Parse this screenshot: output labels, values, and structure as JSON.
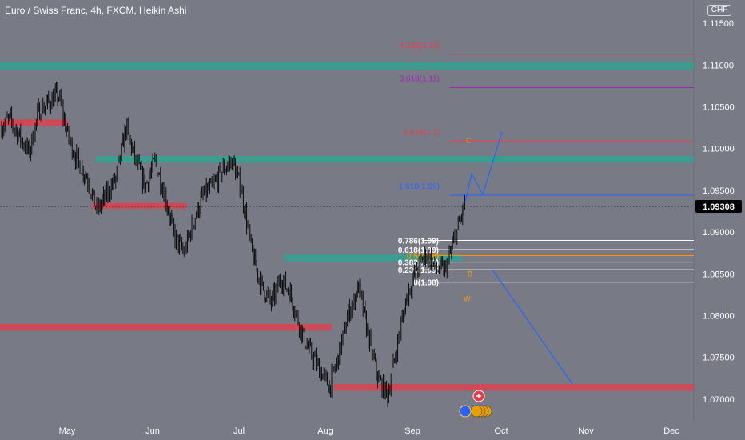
{
  "header": {
    "title": "Euro / Swiss Franc, 4h, FXCM, Heikin Ashi",
    "currency": "CHF"
  },
  "colors": {
    "background": "#787b86",
    "candles": "#000000",
    "support_zone": "#f23645",
    "resistance_zone": "#22ab94",
    "projection": "#2962ff",
    "fib_level": "#ffffff",
    "fib_mid": "#ff9800",
    "fib_ext_1": "#2962ff",
    "fib_ext_2": "#f23645",
    "fib_ext_3": "#9c27b0",
    "fib_ext_4": "#f23645"
  },
  "chart_data": {
    "type": "candlestick",
    "title": "Euro / Swiss Franc, 4h, FXCM, Heikin Ashi",
    "x_ticks": [
      "May",
      "Jun",
      "Jul",
      "Aug",
      "Sep",
      "Oct",
      "Nov",
      "Dec"
    ],
    "y_ticks": [
      "1.11500",
      "1.11000",
      "1.10500",
      "1.10000",
      "1.09500",
      "1.09000",
      "1.08500",
      "1.08000",
      "1.07500",
      "1.07000"
    ],
    "ylim": [
      1.0675,
      1.1175
    ],
    "last_price": "1.09308",
    "last_price_value": 1.09308,
    "price_path": [
      1.1025,
      1.1035,
      1.1015,
      1.0995,
      1.1045,
      1.1055,
      1.1065,
      1.1015,
      1.0985,
      1.0965,
      1.0925,
      1.0945,
      1.0965,
      1.1025,
      1.0985,
      1.0955,
      1.0985,
      1.0945,
      1.0895,
      1.0875,
      1.0915,
      1.0945,
      1.0955,
      1.0975,
      1.0985,
      1.0945,
      1.0875,
      1.0835,
      1.0815,
      1.0845,
      1.0825,
      1.0785,
      1.0755,
      1.0735,
      1.0715,
      1.0755,
      1.0805,
      1.0835,
      1.0775,
      1.0725,
      1.0705,
      1.0765,
      1.0825,
      1.0855,
      1.0875,
      1.0855,
      1.0855,
      1.0895,
      1.0935
    ],
    "zones": [
      {
        "kind": "resistance",
        "y_top": 1.1103,
        "y_bottom": 1.1095,
        "x_start": "May"
      },
      {
        "kind": "support",
        "y_top": 1.1035,
        "y_bottom": 1.1027,
        "x_start": "May"
      },
      {
        "kind": "resistance",
        "y_top": 1.0991,
        "y_bottom": 1.0983,
        "x_start": "May"
      },
      {
        "kind": "support",
        "y_top": 1.0935,
        "y_bottom": 1.0928,
        "x_start": "May"
      },
      {
        "kind": "resistance",
        "y_top": 1.0873,
        "y_bottom": 1.0865,
        "x_start": "Jul"
      },
      {
        "kind": "support",
        "y_top": 1.079,
        "y_bottom": 1.0782,
        "x_start": "May"
      },
      {
        "kind": "support",
        "y_top": 1.0718,
        "y_bottom": 1.071,
        "x_start": "Aug"
      }
    ],
    "fib_levels": [
      {
        "label": "4.236(1.11)",
        "value": 1.1113,
        "color_key": "fib_ext_4"
      },
      {
        "label": "3.618(1.11)",
        "value": 1.1073,
        "color_key": "fib_ext_3"
      },
      {
        "label": "2.618(1.1)",
        "value": 1.1009,
        "color_key": "fib_ext_2"
      },
      {
        "label": "1.618(1.09)",
        "value": 1.0944,
        "color_key": "fib_ext_1"
      },
      {
        "label": "0.786(1.09)",
        "value": 1.089,
        "color_key": "fib_level"
      },
      {
        "label": "0.618(1.09)",
        "value": 1.0879,
        "color_key": "fib_level"
      },
      {
        "label": "0.5(1.09)",
        "value": 1.0872,
        "color_key": "fib_mid"
      },
      {
        "label": "0.382(1.09)",
        "value": 1.0864,
        "color_key": "fib_level"
      },
      {
        "label": "0.236(1.09)",
        "value": 1.0855,
        "color_key": "fib_level"
      },
      {
        "label": "0(1.08)",
        "value": 1.084,
        "color_key": "fib_level"
      }
    ],
    "pattern_labels": [
      {
        "label": "B",
        "value": 1.085
      },
      {
        "label": "W",
        "value": 1.082
      },
      {
        "label": "C",
        "value": 1.101
      }
    ],
    "projections": [
      {
        "name": "bullish",
        "points": [
          [
            1.0935,
            "Sep"
          ],
          [
            1.097,
            "Sep"
          ],
          [
            1.0945,
            "Sep"
          ],
          [
            1.102,
            "Oct"
          ]
        ]
      },
      {
        "name": "bearish",
        "points": [
          [
            1.0855,
            "Sep"
          ],
          [
            1.0718,
            "Nov"
          ]
        ]
      }
    ]
  }
}
